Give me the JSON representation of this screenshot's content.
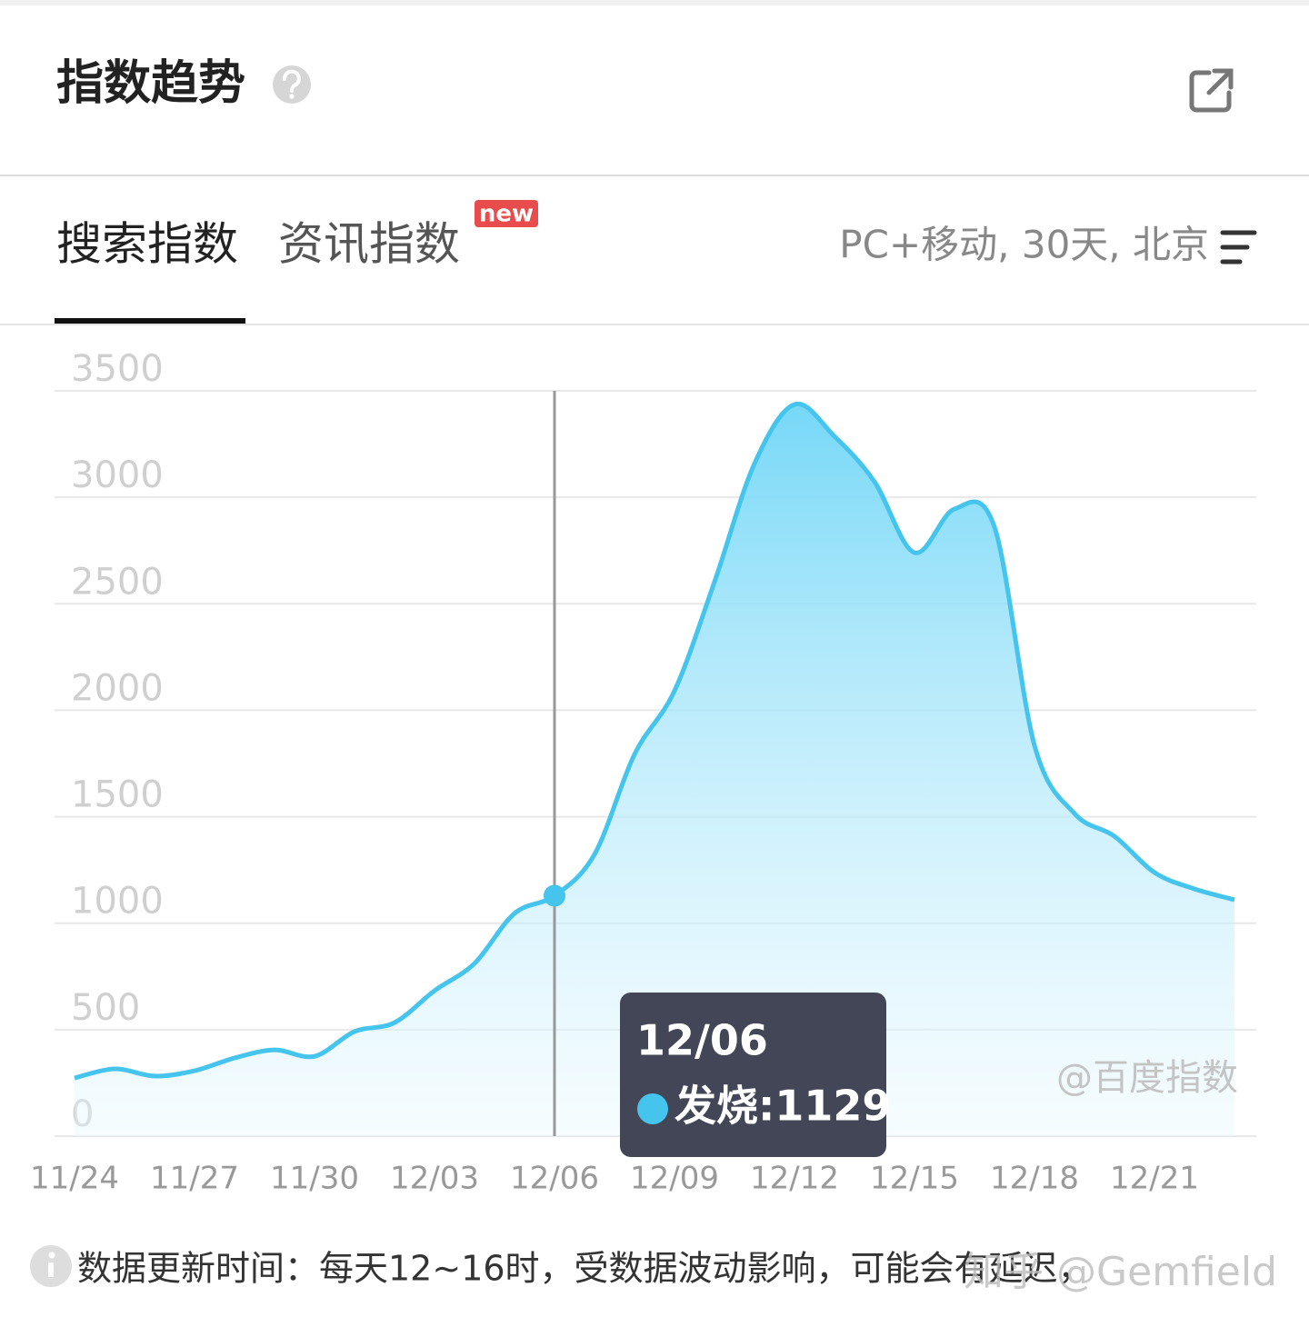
{
  "header": {
    "title": "指数趋势"
  },
  "tabs": [
    "搜索指数",
    "资讯指数"
  ],
  "badge": "new",
  "filter": "PC+移动, 30天, 北京",
  "chart_data": {
    "type": "area",
    "categories": [
      "11/24",
      null,
      null,
      "11/27",
      null,
      null,
      "11/30",
      null,
      null,
      "12/03",
      null,
      null,
      "12/06",
      null,
      null,
      "12/09",
      null,
      null,
      "12/12",
      null,
      null,
      "12/15",
      null,
      null,
      "12/18",
      null,
      null,
      "12/21",
      null,
      null
    ],
    "values": [
      273,
      316,
      282,
      307,
      367,
      405,
      375,
      491,
      533,
      683,
      811,
      1046,
      1129,
      1323,
      1793,
      2091,
      2603,
      3158,
      3436,
      3286,
      3073,
      2740,
      2945,
      2860,
      1835,
      1515,
      1408,
      1238,
      1161,
      1110
    ],
    "color": "#45c4ee",
    "ylim": [
      0,
      3500
    ],
    "yticks": [
      0,
      500,
      1000,
      1500,
      2000,
      2500,
      3000,
      3500
    ],
    "grid": true,
    "tooltip": {
      "title": "12/06",
      "text": "发烧:1129"
    },
    "watermark": "@百度指数"
  },
  "footer": {
    "note": "数据更新时间：每天12~16时，受数据波动影响，可能会有延迟，",
    "watermark": "知乎 @Gemfield"
  }
}
